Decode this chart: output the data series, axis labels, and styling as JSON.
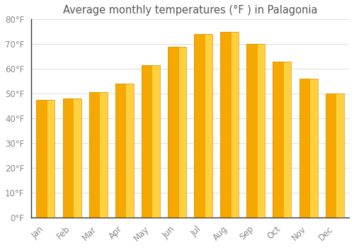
{
  "title": "Average monthly temperatures (°F ) in Palagonia",
  "months": [
    "Jan",
    "Feb",
    "Mar",
    "Apr",
    "May",
    "Jun",
    "Jul",
    "Aug",
    "Sep",
    "Oct",
    "Nov",
    "Dec"
  ],
  "values": [
    47.5,
    48,
    50.5,
    54,
    61.5,
    69,
    74,
    75,
    70,
    63,
    56,
    50
  ],
  "bar_color_left": "#F5A800",
  "bar_color_right": "#FFD040",
  "ylim": [
    0,
    80
  ],
  "yticks": [
    0,
    10,
    20,
    30,
    40,
    50,
    60,
    70,
    80
  ],
  "ytick_labels": [
    "0°F",
    "10°F",
    "20°F",
    "30°F",
    "40°F",
    "50°F",
    "60°F",
    "70°F",
    "80°F"
  ],
  "grid_color": "#e0e0e0",
  "background_color": "#ffffff",
  "title_fontsize": 10.5,
  "tick_fontsize": 8.5,
  "tick_color": "#888888",
  "title_color": "#555555"
}
